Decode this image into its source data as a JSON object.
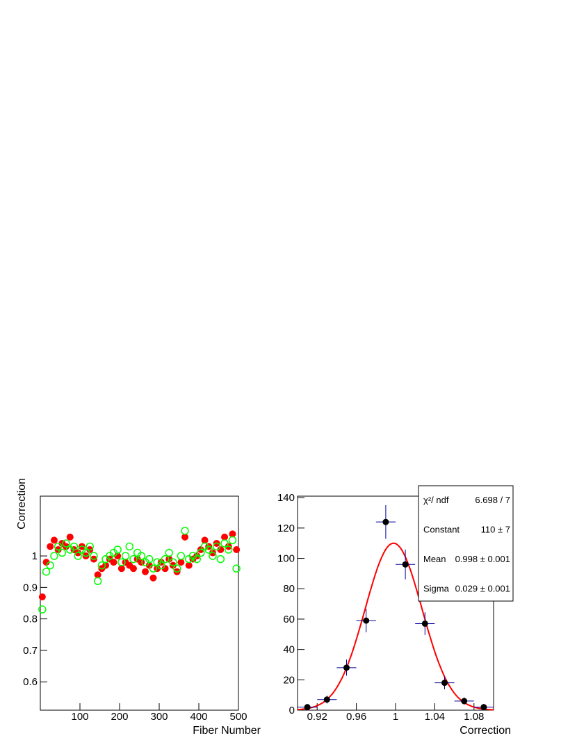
{
  "chart_data": [
    {
      "type": "scatter",
      "ylabel": "Correction",
      "xlabel": "Fiber Number",
      "xlim": [
        0,
        500
      ],
      "xticks": [
        100,
        200,
        300,
        400,
        500
      ],
      "ylim": [
        0.51,
        1.19
      ],
      "yticks": [
        0.6,
        0.7,
        0.8,
        0.9,
        1
      ],
      "x": [
        5,
        15,
        25,
        35,
        45,
        55,
        65,
        75,
        85,
        95,
        105,
        115,
        125,
        135,
        145,
        155,
        165,
        175,
        185,
        195,
        205,
        215,
        225,
        235,
        245,
        255,
        265,
        275,
        285,
        295,
        305,
        315,
        325,
        335,
        345,
        355,
        365,
        375,
        385,
        395,
        405,
        415,
        425,
        435,
        445,
        455,
        465,
        475,
        485,
        495
      ],
      "series": [
        {
          "color": "#ff0000",
          "marker": "filled",
          "values": [
            0.87,
            0.98,
            1.03,
            1.05,
            1.02,
            1.04,
            1.03,
            1.06,
            1.02,
            1.01,
            1.03,
            1.0,
            1.02,
            0.99,
            0.94,
            0.96,
            0.97,
            0.99,
            0.98,
            1.0,
            0.96,
            0.98,
            0.97,
            0.96,
            0.99,
            0.98,
            0.95,
            0.97,
            0.93,
            0.96,
            0.98,
            0.96,
            0.99,
            0.97,
            0.95,
            0.98,
            1.06,
            0.97,
            0.99,
            1.0,
            1.02,
            1.05,
            1.03,
            1.01,
            1.04,
            1.02,
            1.06,
            1.03,
            1.07,
            1.02
          ]
        },
        {
          "color": "#00ff00",
          "marker": "open",
          "values": [
            0.83,
            0.95,
            0.97,
            1.0,
            1.03,
            1.01,
            1.04,
            1.02,
            1.03,
            1.0,
            1.02,
            1.01,
            1.03,
            1.0,
            0.92,
            0.97,
            0.99,
            1.0,
            1.01,
            1.02,
            0.98,
            1.0,
            1.03,
            0.99,
            1.01,
            1.0,
            0.98,
            0.99,
            0.96,
            0.98,
            0.97,
            0.99,
            1.01,
            0.98,
            0.96,
            1.0,
            1.08,
            0.99,
            1.0,
            0.99,
            1.01,
            1.03,
            1.02,
            1.0,
            1.03,
            0.99,
            1.04,
            1.02,
            1.05,
            0.96
          ]
        }
      ]
    },
    {
      "type": "histogram",
      "xlabel": "Correction",
      "xlim": [
        0.9,
        1.1
      ],
      "xticks": [
        0.92,
        0.96,
        1,
        1.04,
        1.08
      ],
      "ylim": [
        0,
        141
      ],
      "yticks": [
        0,
        20,
        40,
        60,
        80,
        100,
        120,
        140
      ],
      "bins": [
        0.9,
        0.92,
        0.94,
        0.96,
        0.98,
        1.0,
        1.02,
        1.04,
        1.06,
        1.08,
        1.1
      ],
      "values": [
        2,
        7,
        28,
        59,
        124,
        96,
        57,
        18,
        6,
        2
      ],
      "errors": [
        1.4,
        2.6,
        5.3,
        7.7,
        11.1,
        9.8,
        7.5,
        4.2,
        2.4,
        1.4
      ],
      "marker_color": "#000000",
      "error_color": "#000099",
      "fit_color": "#ff0000",
      "fit": {
        "constant": 110,
        "mean": 0.998,
        "sigma": 0.029
      },
      "stats": [
        {
          "name": "χ²/ ndf",
          "value": "6.698 / 7"
        },
        {
          "name": "Constant",
          "value": "110 ± 7"
        },
        {
          "name": "Mean",
          "value": "0.998 ± 0.001"
        },
        {
          "name": "Sigma",
          "value": "0.029 ± 0.001"
        }
      ]
    }
  ]
}
